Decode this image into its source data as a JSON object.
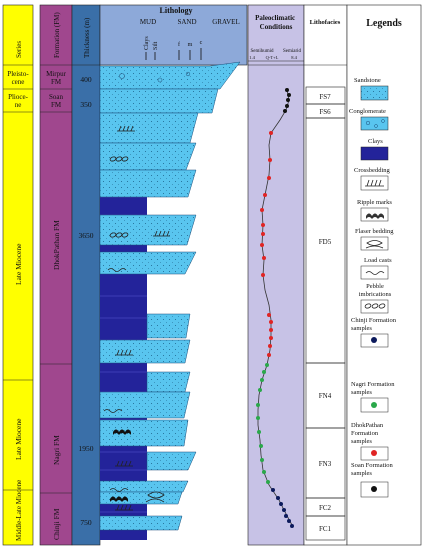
{
  "headers": {
    "series": "Series",
    "formation": "Formation (FM)",
    "thickness": "Thickness (m)",
    "lithology": "Lithology",
    "mud": "MUD",
    "sand": "SAND",
    "gravel": "GRAVEL",
    "clays": "Clays",
    "silt": "Silt",
    "f": "f",
    "m": "m",
    "c": "c",
    "paleoclimatic": "Paleoclimatic Conditions",
    "semihumid": "Semihumid",
    "semiarid": "Semiarid",
    "scale_ticks": [
      "1.4",
      "Q-T+L",
      "8.4"
    ],
    "lithofacies": "Lithofacies",
    "legends": "Legends"
  },
  "series": [
    "Pleisto-cene",
    "Plioce-ne",
    "Late Miocene",
    "Late Miocene",
    "Middle-Late Miocene"
  ],
  "formations": [
    "Mirpur FM",
    "Soan FM",
    "DhokPathan FM",
    "Nagri FM",
    "Chinji FM"
  ],
  "thickness_values": [
    "400",
    "350",
    "3650",
    "1950",
    "750"
  ],
  "lithofacies": [
    "FS7",
    "FS6",
    "FD5",
    "FN4",
    "FN3",
    "FC2",
    "FC1"
  ],
  "legend": [
    {
      "label": "Sandstone",
      "icon": "sandstone-swatch"
    },
    {
      "label": "Conglomerate",
      "icon": "conglomerate-swatch"
    },
    {
      "label": "Clays",
      "icon": "clays-swatch"
    },
    {
      "label": "Crossbedding",
      "icon": "crossbedding-symbol"
    },
    {
      "label": "Ripple marks",
      "icon": "ripple-marks-symbol"
    },
    {
      "label": "Flaser bedding",
      "icon": "flaser-bedding-symbol"
    },
    {
      "label": "Load casts",
      "icon": "load-casts-symbol"
    },
    {
      "label": "Pebble imbrications",
      "icon": "pebble-imbrication-symbol"
    },
    {
      "label": "Chinji Formation samples",
      "icon": "chinji-sample-dot",
      "color": "#0c1a5c"
    },
    {
      "label": "Nagri Formation samples",
      "icon": "nagri-sample-dot",
      "color": "#2aa84a"
    },
    {
      "label": "DhokPathan Formation samples",
      "icon": "dhokpathan-sample-dot",
      "color": "#e02424"
    },
    {
      "label": "Soan Formation samples",
      "icon": "soan-sample-dot",
      "color": "#111111"
    }
  ],
  "colors": {
    "series": "#ffff00",
    "formation": "#a0478e",
    "thickness": "#3a6fa8",
    "sand": "#59c5ef",
    "clay": "#23239a",
    "header": "#8da9d9",
    "paleo": "#c7c2e6",
    "chinji": "#0c1a5c",
    "nagri": "#2aa84a",
    "dhokpathan": "#e02424",
    "soan": "#111111"
  }
}
